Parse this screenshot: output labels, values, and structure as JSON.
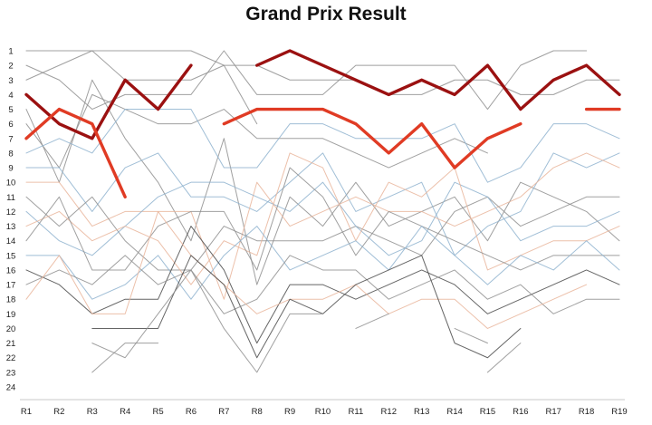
{
  "chart_data": {
    "type": "line",
    "title": "Grand Prix Result",
    "xlabel": "",
    "ylabel": "",
    "categories": [
      "R1",
      "R2",
      "R3",
      "R4",
      "R5",
      "R6",
      "R7",
      "R8",
      "R9",
      "R10",
      "R11",
      "R12",
      "R13",
      "R14",
      "R15",
      "R16",
      "R17",
      "R18",
      "R19"
    ],
    "y_ticks": [
      1,
      2,
      3,
      4,
      5,
      6,
      7,
      8,
      9,
      10,
      11,
      12,
      13,
      14,
      15,
      16,
      17,
      18,
      19,
      20,
      21,
      22,
      23,
      24
    ],
    "ylim": [
      1,
      24
    ],
    "y_inverted": true,
    "grid": false,
    "legend": "none",
    "colors": {
      "highlight_dark": "#9b1111",
      "highlight_red": "#e03b24",
      "grey": "#8f8f8f",
      "blue": "#8fb3cf",
      "peach": "#e9b59b",
      "dark_grey": "#4a4a4a"
    },
    "highlight_series": [
      {
        "color": "dark",
        "values": [
          4,
          6,
          7,
          3,
          5,
          2,
          null,
          2,
          1,
          2,
          3,
          4,
          3,
          4,
          2,
          5,
          3,
          2,
          4
        ]
      },
      {
        "color": "red",
        "values": [
          7,
          5,
          6,
          11,
          null,
          null,
          6,
          5,
          5,
          5,
          6,
          8,
          6,
          9,
          7,
          6,
          null,
          5,
          5
        ]
      }
    ],
    "background_series": [
      {
        "color": "grey",
        "values": [
          1,
          1,
          1,
          1,
          1,
          1,
          2,
          6,
          null,
          null,
          null,
          null,
          null,
          null,
          null,
          null,
          null,
          null,
          null
        ]
      },
      {
        "color": "grey",
        "values": [
          3,
          2,
          1,
          3,
          3,
          3,
          2,
          2,
          3,
          3,
          3,
          4,
          4,
          3,
          3,
          4,
          4,
          3,
          3
        ]
      },
      {
        "color": "grey",
        "values": [
          2,
          3,
          5,
          4,
          4,
          4,
          1,
          4,
          4,
          4,
          2,
          2,
          2,
          2,
          5,
          2,
          1,
          1,
          null
        ]
      },
      {
        "color": "grey",
        "values": [
          6,
          9,
          4,
          5,
          6,
          6,
          5,
          7,
          7,
          7,
          8,
          9,
          8,
          7,
          8,
          null,
          null,
          null,
          null
        ]
      },
      {
        "color": "grey",
        "values": [
          5,
          10,
          3,
          7,
          10,
          14,
          7,
          17,
          11,
          13,
          10,
          13,
          12,
          11,
          14,
          10,
          11,
          12,
          14
        ]
      },
      {
        "color": "blue",
        "values": [
          8,
          7,
          8,
          5,
          5,
          5,
          9,
          9,
          6,
          6,
          7,
          7,
          7,
          6,
          10,
          9,
          6,
          6,
          7
        ]
      },
      {
        "color": "blue",
        "values": [
          9,
          9,
          12,
          9,
          8,
          11,
          11,
          12,
          10,
          8,
          12,
          11,
          10,
          15,
          13,
          12,
          8,
          9,
          8
        ]
      },
      {
        "color": "peach",
        "values": [
          10,
          10,
          13,
          12,
          12,
          12,
          18,
          10,
          13,
          12,
          11,
          12,
          12,
          13,
          12,
          11,
          9,
          8,
          9
        ]
      },
      {
        "color": "grey",
        "values": [
          11,
          13,
          11,
          14,
          16,
          16,
          13,
          14,
          14,
          14,
          13,
          14,
          15,
          12,
          11,
          13,
          12,
          11,
          11
        ]
      },
      {
        "color": "blue",
        "values": [
          12,
          14,
          15,
          13,
          11,
          10,
          10,
          11,
          12,
          10,
          13,
          15,
          14,
          10,
          11,
          14,
          13,
          13,
          12
        ]
      },
      {
        "color": "peach",
        "values": [
          13,
          12,
          14,
          13,
          14,
          17,
          14,
          15,
          8,
          9,
          14,
          10,
          11,
          9,
          16,
          15,
          14,
          14,
          13
        ]
      },
      {
        "color": "grey",
        "values": [
          14,
          11,
          16,
          16,
          13,
          12,
          12,
          16,
          9,
          11,
          15,
          12,
          13,
          14,
          15,
          16,
          15,
          15,
          15
        ]
      },
      {
        "color": "blue",
        "values": [
          15,
          15,
          18,
          17,
          15,
          18,
          15,
          13,
          16,
          15,
          14,
          16,
          13,
          15,
          17,
          15,
          16,
          14,
          16
        ]
      },
      {
        "color": "dark_grey",
        "values": [
          16,
          17,
          19,
          18,
          18,
          13,
          16,
          21,
          17,
          17,
          18,
          17,
          16,
          17,
          19,
          18,
          17,
          16,
          17
        ]
      },
      {
        "color": "grey",
        "values": [
          17,
          16,
          17,
          15,
          17,
          16,
          19,
          18,
          15,
          16,
          16,
          18,
          17,
          16,
          18,
          17,
          19,
          18,
          18
        ]
      },
      {
        "color": "peach",
        "values": [
          18,
          15,
          19,
          19,
          12,
          15,
          17,
          19,
          18,
          18,
          17,
          19,
          18,
          18,
          20,
          19,
          18,
          17,
          null
        ]
      },
      {
        "color": "dark_grey",
        "values": [
          null,
          null,
          20,
          20,
          20,
          15,
          17,
          22,
          18,
          19,
          17,
          16,
          15,
          21,
          22,
          20,
          null,
          null,
          null
        ]
      },
      {
        "color": "grey",
        "values": [
          null,
          null,
          21,
          22,
          19,
          16,
          20,
          23,
          19,
          19,
          null,
          null,
          null,
          null,
          23,
          21,
          null,
          null,
          null
        ]
      },
      {
        "color": "grey",
        "values": [
          null,
          null,
          23,
          21,
          21,
          null,
          null,
          24,
          null,
          null,
          null,
          null,
          null,
          null,
          21,
          null,
          null,
          null,
          null
        ]
      },
      {
        "color": "grey",
        "values": [
          null,
          null,
          22,
          null,
          null,
          null,
          null,
          20,
          null,
          null,
          20,
          19,
          null,
          20,
          21,
          null,
          null,
          null,
          null
        ]
      }
    ]
  }
}
